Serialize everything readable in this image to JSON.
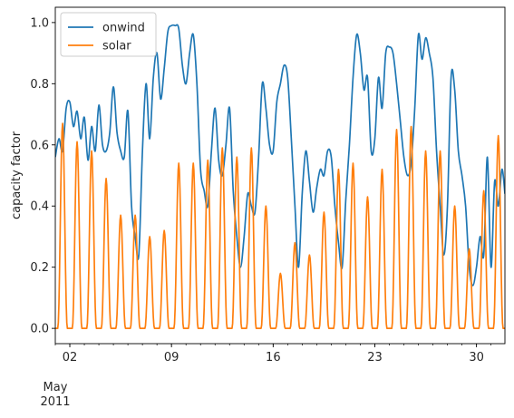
{
  "chart_data": {
    "type": "line",
    "title": "",
    "xlabel": "",
    "ylabel": "capacity factor",
    "x_range": [
      "2011-05-01 00:00",
      "2011-05-31 23:00"
    ],
    "x_month_label": "May",
    "x_year_label": "2011",
    "x_ticks": [
      {
        "date": "2011-05-02",
        "label": "02"
      },
      {
        "date": "2011-05-09",
        "label": "09"
      },
      {
        "date": "2011-05-16",
        "label": "16"
      },
      {
        "date": "2011-05-23",
        "label": "23"
      },
      {
        "date": "2011-05-30",
        "label": "30"
      }
    ],
    "ylim": [
      -0.05,
      1.05
    ],
    "y_ticks": [
      0.0,
      0.2,
      0.4,
      0.6,
      0.8,
      1.0
    ],
    "y_tick_labels": [
      "0.0",
      "0.2",
      "0.4",
      "0.6",
      "0.8",
      "1.0"
    ],
    "grid": false,
    "legend_position": "top-left",
    "series": [
      {
        "name": "onwind",
        "color": "#1f77b4",
        "points": [
          [
            "2011-05-01 00:00",
            0.56
          ],
          [
            "2011-05-01 06:00",
            0.62
          ],
          [
            "2011-05-01 12:00",
            0.58
          ],
          [
            "2011-05-01 18:00",
            0.72
          ],
          [
            "2011-05-02 00:00",
            0.74
          ],
          [
            "2011-05-02 06:00",
            0.66
          ],
          [
            "2011-05-02 12:00",
            0.71
          ],
          [
            "2011-05-02 18:00",
            0.62
          ],
          [
            "2011-05-03 00:00",
            0.69
          ],
          [
            "2011-05-03 06:00",
            0.55
          ],
          [
            "2011-05-03 12:00",
            0.66
          ],
          [
            "2011-05-03 18:00",
            0.58
          ],
          [
            "2011-05-04 00:00",
            0.73
          ],
          [
            "2011-05-04 06:00",
            0.6
          ],
          [
            "2011-05-04 12:00",
            0.58
          ],
          [
            "2011-05-04 18:00",
            0.64
          ],
          [
            "2011-05-05 00:00",
            0.79
          ],
          [
            "2011-05-05 06:00",
            0.64
          ],
          [
            "2011-05-05 12:00",
            0.58
          ],
          [
            "2011-05-05 18:00",
            0.56
          ],
          [
            "2011-05-06 00:00",
            0.71
          ],
          [
            "2011-05-06 06:00",
            0.4
          ],
          [
            "2011-05-06 12:00",
            0.3
          ],
          [
            "2011-05-06 18:00",
            0.24
          ],
          [
            "2011-05-07 00:00",
            0.58
          ],
          [
            "2011-05-07 06:00",
            0.8
          ],
          [
            "2011-05-07 12:00",
            0.62
          ],
          [
            "2011-05-07 18:00",
            0.82
          ],
          [
            "2011-05-08 00:00",
            0.9
          ],
          [
            "2011-05-08 06:00",
            0.75
          ],
          [
            "2011-05-08 12:00",
            0.85
          ],
          [
            "2011-05-08 18:00",
            0.97
          ],
          [
            "2011-05-09 00:00",
            0.99
          ],
          [
            "2011-05-09 06:00",
            0.99
          ],
          [
            "2011-05-09 12:00",
            0.98
          ],
          [
            "2011-05-09 18:00",
            0.86
          ],
          [
            "2011-05-10 00:00",
            0.8
          ],
          [
            "2011-05-10 06:00",
            0.9
          ],
          [
            "2011-05-10 12:00",
            0.96
          ],
          [
            "2011-05-10 18:00",
            0.8
          ],
          [
            "2011-05-11 00:00",
            0.52
          ],
          [
            "2011-05-11 06:00",
            0.45
          ],
          [
            "2011-05-11 12:00",
            0.4
          ],
          [
            "2011-05-11 18:00",
            0.58
          ],
          [
            "2011-05-12 00:00",
            0.72
          ],
          [
            "2011-05-12 06:00",
            0.55
          ],
          [
            "2011-05-12 12:00",
            0.5
          ],
          [
            "2011-05-12 18:00",
            0.6
          ],
          [
            "2011-05-13 00:00",
            0.72
          ],
          [
            "2011-05-13 06:00",
            0.45
          ],
          [
            "2011-05-13 12:00",
            0.3
          ],
          [
            "2011-05-13 18:00",
            0.2
          ],
          [
            "2011-05-14 00:00",
            0.3
          ],
          [
            "2011-05-14 06:00",
            0.44
          ],
          [
            "2011-05-14 12:00",
            0.4
          ],
          [
            "2011-05-14 18:00",
            0.38
          ],
          [
            "2011-05-15 00:00",
            0.56
          ],
          [
            "2011-05-15 06:00",
            0.8
          ],
          [
            "2011-05-15 12:00",
            0.72
          ],
          [
            "2011-05-15 18:00",
            0.6
          ],
          [
            "2011-05-16 00:00",
            0.58
          ],
          [
            "2011-05-16 06:00",
            0.74
          ],
          [
            "2011-05-16 12:00",
            0.8
          ],
          [
            "2011-05-16 18:00",
            0.86
          ],
          [
            "2011-05-17 00:00",
            0.82
          ],
          [
            "2011-05-17 06:00",
            0.62
          ],
          [
            "2011-05-17 12:00",
            0.4
          ],
          [
            "2011-05-17 18:00",
            0.2
          ],
          [
            "2011-05-18 00:00",
            0.44
          ],
          [
            "2011-05-18 06:00",
            0.58
          ],
          [
            "2011-05-18 12:00",
            0.48
          ],
          [
            "2011-05-18 18:00",
            0.38
          ],
          [
            "2011-05-19 00:00",
            0.46
          ],
          [
            "2011-05-19 06:00",
            0.52
          ],
          [
            "2011-05-19 12:00",
            0.5
          ],
          [
            "2011-05-19 18:00",
            0.58
          ],
          [
            "2011-05-20 00:00",
            0.56
          ],
          [
            "2011-05-20 06:00",
            0.4
          ],
          [
            "2011-05-20 12:00",
            0.28
          ],
          [
            "2011-05-20 18:00",
            0.2
          ],
          [
            "2011-05-21 00:00",
            0.42
          ],
          [
            "2011-05-21 06:00",
            0.6
          ],
          [
            "2011-05-21 12:00",
            0.82
          ],
          [
            "2011-05-21 18:00",
            0.96
          ],
          [
            "2011-05-22 00:00",
            0.9
          ],
          [
            "2011-05-22 06:00",
            0.78
          ],
          [
            "2011-05-22 12:00",
            0.82
          ],
          [
            "2011-05-22 18:00",
            0.58
          ],
          [
            "2011-05-23 00:00",
            0.62
          ],
          [
            "2011-05-23 06:00",
            0.82
          ],
          [
            "2011-05-23 12:00",
            0.72
          ],
          [
            "2011-05-23 18:00",
            0.9
          ],
          [
            "2011-05-24 00:00",
            0.92
          ],
          [
            "2011-05-24 06:00",
            0.9
          ],
          [
            "2011-05-24 12:00",
            0.8
          ],
          [
            "2011-05-24 18:00",
            0.68
          ],
          [
            "2011-05-25 00:00",
            0.56
          ],
          [
            "2011-05-25 06:00",
            0.5
          ],
          [
            "2011-05-25 12:00",
            0.54
          ],
          [
            "2011-05-25 18:00",
            0.72
          ],
          [
            "2011-05-26 00:00",
            0.96
          ],
          [
            "2011-05-26 06:00",
            0.88
          ],
          [
            "2011-05-26 12:00",
            0.95
          ],
          [
            "2011-05-26 18:00",
            0.9
          ],
          [
            "2011-05-27 00:00",
            0.82
          ],
          [
            "2011-05-27 06:00",
            0.58
          ],
          [
            "2011-05-27 12:00",
            0.4
          ],
          [
            "2011-05-27 18:00",
            0.24
          ],
          [
            "2011-05-28 00:00",
            0.4
          ],
          [
            "2011-05-28 06:00",
            0.82
          ],
          [
            "2011-05-28 12:00",
            0.78
          ],
          [
            "2011-05-28 18:00",
            0.58
          ],
          [
            "2011-05-29 00:00",
            0.5
          ],
          [
            "2011-05-29 06:00",
            0.4
          ],
          [
            "2011-05-29 12:00",
            0.2
          ],
          [
            "2011-05-29 18:00",
            0.14
          ],
          [
            "2011-05-30 00:00",
            0.2
          ],
          [
            "2011-05-30 06:00",
            0.3
          ],
          [
            "2011-05-30 12:00",
            0.24
          ],
          [
            "2011-05-30 18:00",
            0.56
          ],
          [
            "2011-05-31 00:00",
            0.2
          ],
          [
            "2011-05-31 06:00",
            0.48
          ],
          [
            "2011-05-31 12:00",
            0.4
          ],
          [
            "2011-05-31 18:00",
            0.52
          ],
          [
            "2011-05-31 23:00",
            0.44
          ]
        ]
      },
      {
        "name": "solar",
        "color": "#ff7f0e",
        "daily_peaks": [
          [
            "2011-05-01",
            0.67
          ],
          [
            "2011-05-02",
            0.61
          ],
          [
            "2011-05-03",
            0.58
          ],
          [
            "2011-05-04",
            0.49
          ],
          [
            "2011-05-05",
            0.37
          ],
          [
            "2011-05-06",
            0.37
          ],
          [
            "2011-05-07",
            0.3
          ],
          [
            "2011-05-08",
            0.32
          ],
          [
            "2011-05-09",
            0.54
          ],
          [
            "2011-05-10",
            0.54
          ],
          [
            "2011-05-11",
            0.55
          ],
          [
            "2011-05-12",
            0.59
          ],
          [
            "2011-05-13",
            0.56
          ],
          [
            "2011-05-14",
            0.59
          ],
          [
            "2011-05-15",
            0.4
          ],
          [
            "2011-05-16",
            0.18
          ],
          [
            "2011-05-17",
            0.28
          ],
          [
            "2011-05-18",
            0.24
          ],
          [
            "2011-05-19",
            0.38
          ],
          [
            "2011-05-20",
            0.52
          ],
          [
            "2011-05-21",
            0.54
          ],
          [
            "2011-05-22",
            0.43
          ],
          [
            "2011-05-23",
            0.52
          ],
          [
            "2011-05-24",
            0.65
          ],
          [
            "2011-05-25",
            0.66
          ],
          [
            "2011-05-26",
            0.58
          ],
          [
            "2011-05-27",
            0.58
          ],
          [
            "2011-05-28",
            0.4
          ],
          [
            "2011-05-29",
            0.26
          ],
          [
            "2011-05-30",
            0.45
          ],
          [
            "2011-05-31",
            0.63
          ]
        ],
        "daylight_hours": [
          "04:00",
          "20:00"
        ],
        "night_value": 0.0
      }
    ]
  }
}
